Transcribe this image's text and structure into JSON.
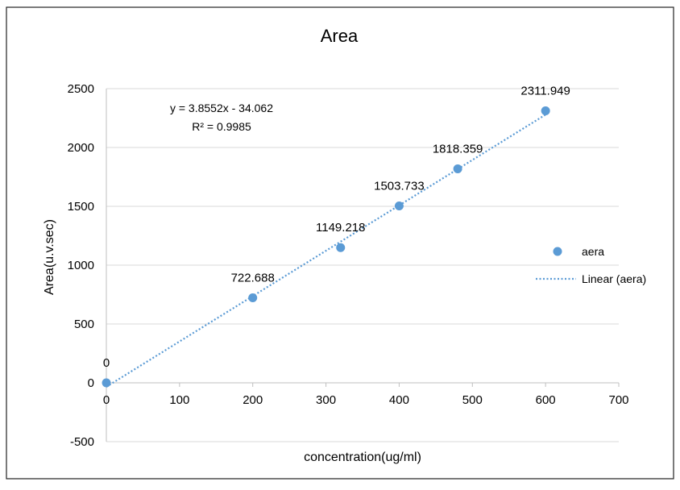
{
  "chart_data": {
    "type": "scatter",
    "title": "Area",
    "xlabel": "concentration(ug/ml)",
    "ylabel": "Area(u.v.sec)",
    "xlim": [
      0,
      700
    ],
    "ylim": [
      -500,
      2500
    ],
    "x_ticks": [
      0,
      100,
      200,
      300,
      400,
      500,
      600,
      700
    ],
    "y_ticks": [
      -500,
      0,
      500,
      1000,
      1500,
      2000,
      2500
    ],
    "x_tick_labels": [
      "0",
      "100",
      "200",
      "300",
      "400",
      "500",
      "600",
      "700"
    ],
    "y_tick_labels": [
      "-500",
      "0",
      "500",
      "1000",
      "1500",
      "2000",
      "2500"
    ],
    "grid": "horizontal",
    "legend_position": "right",
    "series": [
      {
        "name": "aera",
        "color": "#5b9bd5",
        "points": [
          {
            "x": 0,
            "y": 0,
            "label": "0"
          },
          {
            "x": 200,
            "y": 722.688,
            "label": "722.688"
          },
          {
            "x": 320,
            "y": 1149.218,
            "label": "1149.218"
          },
          {
            "x": 400,
            "y": 1503.733,
            "label": "1503.733"
          },
          {
            "x": 480,
            "y": 1818.359,
            "label": "1818.359"
          },
          {
            "x": 600,
            "y": 2311.949,
            "label": "2311.949"
          }
        ]
      }
    ],
    "trendline": {
      "name": "Linear (aera)",
      "type": "linear",
      "slope": 3.8552,
      "intercept": -34.062,
      "x_range": [
        0,
        600
      ],
      "color": "#5b9bd5",
      "equation": "y = 3.8552x - 34.062",
      "r_squared": "R² = 0.9985"
    }
  }
}
